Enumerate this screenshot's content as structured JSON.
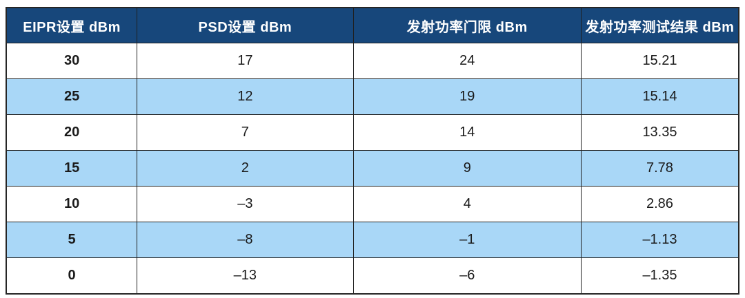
{
  "table": {
    "columns": [
      {
        "label": "EIPR设置 dBm"
      },
      {
        "label": "PSD设置 dBm"
      },
      {
        "label": "发射功率门限 dBm"
      },
      {
        "label": "发射功率测试结果 dBm"
      }
    ],
    "rows": [
      {
        "cells": [
          "30",
          "17",
          "24",
          "15.21"
        ]
      },
      {
        "cells": [
          "25",
          "12",
          "19",
          "15.14"
        ]
      },
      {
        "cells": [
          "20",
          "7",
          "14",
          "13.35"
        ]
      },
      {
        "cells": [
          "15",
          "2",
          "9",
          "7.78"
        ]
      },
      {
        "cells": [
          "10",
          "–3",
          "4",
          "2.86"
        ]
      },
      {
        "cells": [
          "5",
          "–8",
          "–1",
          "–1.13"
        ]
      },
      {
        "cells": [
          "0",
          "–13",
          "–6",
          "–1.35"
        ]
      }
    ]
  },
  "colors": {
    "header_bg": "#17477B",
    "header_text": "#FFFFFF",
    "row_bg": "#FFFFFF",
    "row_alt_bg": "#A9D7F7",
    "border": "#1F1F1F",
    "body_text": "#1A1A1A"
  }
}
